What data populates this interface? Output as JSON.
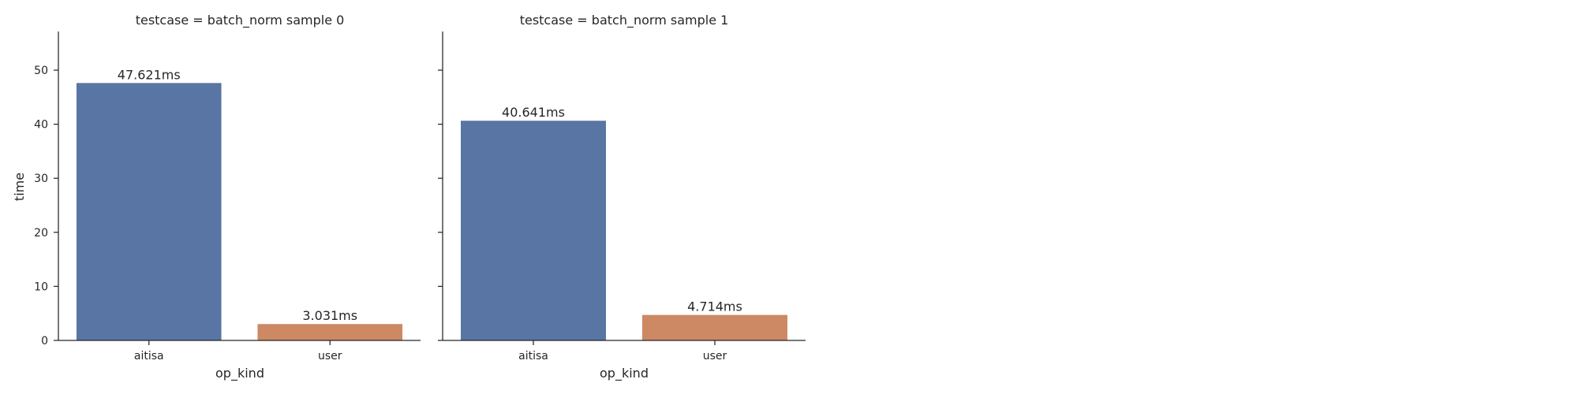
{
  "chart_data": [
    {
      "type": "bar",
      "title": "testcase = batch_norm sample 0",
      "xlabel": "op_kind",
      "ylabel": "time",
      "categories": [
        "aitisa",
        "user"
      ],
      "values": [
        47.621,
        3.031
      ],
      "data_labels": [
        "47.621ms",
        "3.031ms"
      ],
      "colors": [
        "#5975a4",
        "#cc8963"
      ],
      "ylim": [
        0,
        57.15
      ],
      "yticks": [
        0,
        10,
        20,
        30,
        40,
        50
      ],
      "ytick_labels": [
        "0",
        "10",
        "20",
        "30",
        "40",
        "50"
      ],
      "grid": false
    },
    {
      "type": "bar",
      "title": "testcase = batch_norm sample 1",
      "xlabel": "op_kind",
      "ylabel": "",
      "categories": [
        "aitisa",
        "user"
      ],
      "values": [
        40.641,
        4.714
      ],
      "data_labels": [
        "40.641ms",
        "4.714ms"
      ],
      "colors": [
        "#5975a4",
        "#cc8963"
      ],
      "ylim": [
        0,
        57.15
      ],
      "yticks": [
        0,
        10,
        20,
        30,
        40,
        50
      ],
      "ytick_labels": [
        "",
        "",
        "",
        "",
        "",
        ""
      ],
      "grid": false
    }
  ]
}
